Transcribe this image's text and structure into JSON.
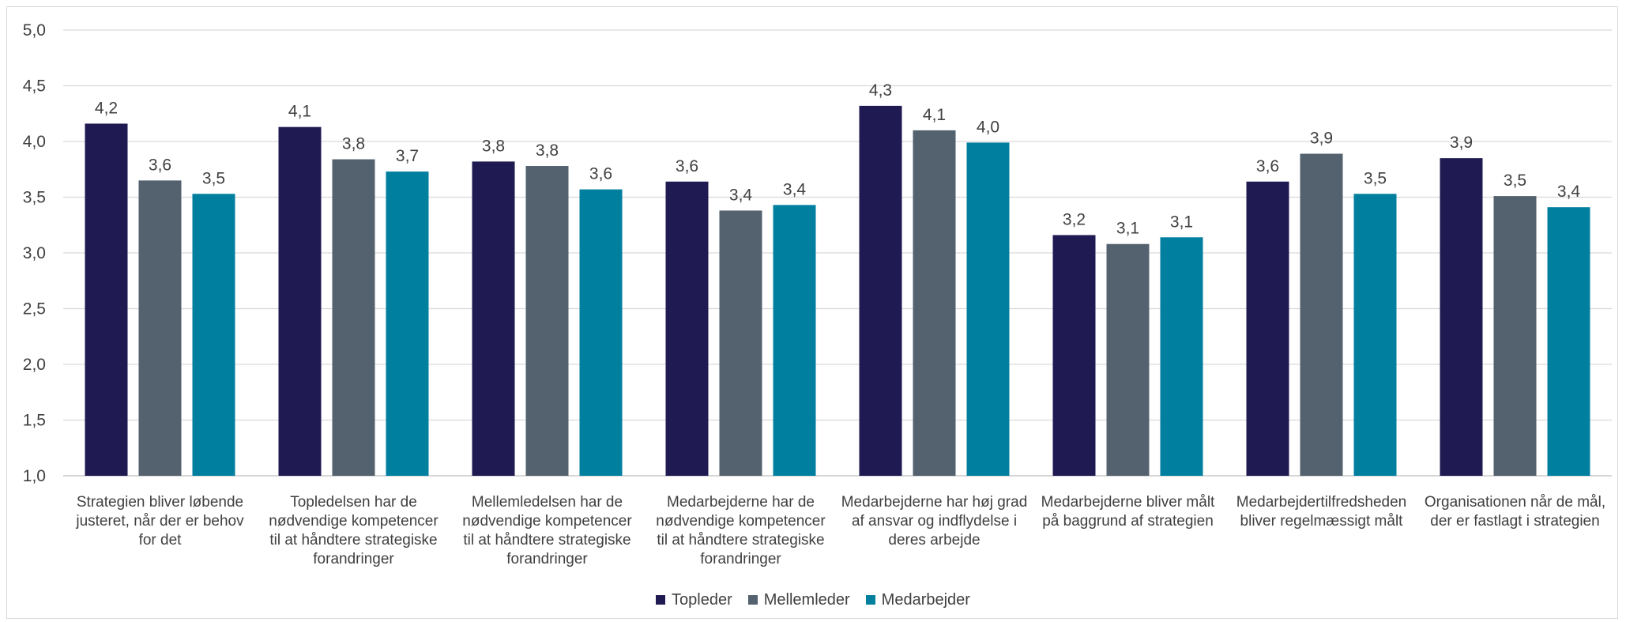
{
  "chart_data": {
    "type": "bar",
    "title": "",
    "xlabel": "",
    "ylabel": "",
    "ylim": [
      1.0,
      5.0
    ],
    "yticks": [
      "1,0",
      "1,5",
      "2,0",
      "2,5",
      "3,0",
      "3,5",
      "4,0",
      "4,5",
      "5,0"
    ],
    "grid": true,
    "legend_position": "bottom",
    "categories": [
      [
        "Strategien bliver løbende",
        "justeret, når der er behov",
        "for det"
      ],
      [
        "Topledelsen har de",
        "nødvendige kompetencer",
        "til at håndtere strategiske",
        "forandringer"
      ],
      [
        "Mellemledelsen har de",
        "nødvendige kompetencer",
        "til at håndtere strategiske",
        "forandringer"
      ],
      [
        "Medarbejderne har de",
        "nødvendige kompetencer",
        "til at håndtere strategiske",
        "forandringer"
      ],
      [
        "Medarbejderne har høj grad",
        "af ansvar og indflydelse i",
        "deres arbejde"
      ],
      [
        "Medarbejderne bliver målt",
        "på baggrund af strategien"
      ],
      [
        "Medarbejdertilfredsheden",
        "bliver regelmæssigt målt"
      ],
      [
        "Organisationen når de mål,",
        "der er fastlagt i strategien"
      ]
    ],
    "series": [
      {
        "name": "Topleder",
        "color": "#1f1a52",
        "values": [
          4.16,
          4.13,
          3.82,
          3.64,
          4.32,
          3.16,
          3.64,
          3.85
        ],
        "labels": [
          "4,2",
          "4,1",
          "3,8",
          "3,6",
          "4,3",
          "3,2",
          "3,6",
          "3,9"
        ]
      },
      {
        "name": "Mellemleder",
        "color": "#53626e",
        "values": [
          3.65,
          3.84,
          3.78,
          3.38,
          4.1,
          3.08,
          3.89,
          3.51
        ],
        "labels": [
          "3,6",
          "3,8",
          "3,8",
          "3,4",
          "4,1",
          "3,1",
          "3,9",
          "3,5"
        ]
      },
      {
        "name": "Medarbejder",
        "color": "#007f9f",
        "values": [
          3.53,
          3.73,
          3.57,
          3.43,
          3.99,
          3.14,
          3.53,
          3.41
        ],
        "labels": [
          "3,5",
          "3,7",
          "3,6",
          "3,4",
          "4,0",
          "3,1",
          "3,5",
          "3,4"
        ]
      }
    ]
  }
}
